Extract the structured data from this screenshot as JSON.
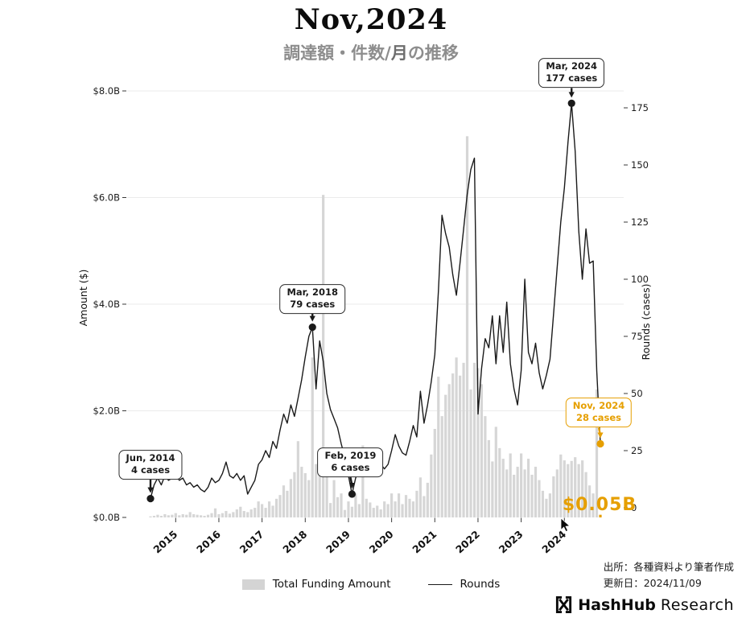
{
  "header": {
    "title": "Nov,2024",
    "subtitle_prefix": "調達額・件数/",
    "subtitle_bold": "月",
    "subtitle_suffix": "の推移"
  },
  "colors": {
    "bar": "#d6d6d6",
    "line": "#1a1a1a",
    "accent_orange": "#E69F00",
    "grid": "#ebebeb",
    "tick": "#3a3a3a"
  },
  "chart_data": {
    "type": "bar+line",
    "x_start": "2014-06",
    "x_freq": "monthly",
    "title": "Nov,2024",
    "subtitle": "調達額・件数/月の推移",
    "amount_axis": {
      "label": "Amount ($)",
      "ticks": [
        "$0.0B",
        "$2.0B",
        "$4.0B",
        "$6.0B",
        "$8.0B"
      ],
      "ylim": [
        0,
        8
      ]
    },
    "rounds_axis": {
      "label": "Rounds (cases)",
      "ticks": [
        "0",
        "25",
        "50",
        "75",
        "100",
        "125",
        "150",
        "175"
      ],
      "ylim": [
        0,
        190
      ]
    },
    "year_labels": [
      "2015",
      "2016",
      "2017",
      "2018",
      "2019",
      "2020",
      "2021",
      "2022",
      "2023",
      "2024"
    ],
    "year_month_index": [
      7,
      19,
      31,
      43,
      55,
      67,
      79,
      91,
      103,
      115
    ],
    "series": [
      {
        "name": "Total Funding Amount",
        "type": "bar",
        "unit": "$B",
        "values": [
          0.02,
          0.03,
          0.05,
          0.03,
          0.06,
          0.04,
          0.05,
          0.08,
          0.04,
          0.06,
          0.05,
          0.1,
          0.06,
          0.05,
          0.04,
          0.03,
          0.05,
          0.08,
          0.17,
          0.06,
          0.08,
          0.12,
          0.07,
          0.1,
          0.15,
          0.2,
          0.12,
          0.1,
          0.15,
          0.18,
          0.3,
          0.25,
          0.18,
          0.3,
          0.22,
          0.35,
          0.42,
          0.6,
          0.5,
          0.72,
          0.85,
          1.43,
          0.95,
          0.83,
          0.7,
          3.0,
          1.0,
          0.9,
          6.05,
          0.85,
          0.27,
          0.7,
          0.38,
          0.45,
          0.14,
          0.3,
          0.2,
          0.45,
          0.25,
          1.35,
          0.35,
          0.28,
          0.18,
          0.22,
          0.15,
          0.3,
          0.25,
          0.45,
          0.3,
          0.45,
          0.25,
          0.42,
          0.35,
          0.3,
          0.5,
          0.75,
          0.4,
          0.65,
          1.18,
          1.66,
          2.64,
          1.9,
          2.3,
          2.5,
          2.7,
          3.0,
          2.66,
          2.9,
          7.15,
          2.4,
          2.9,
          2.8,
          2.5,
          1.9,
          1.45,
          1.05,
          1.7,
          1.3,
          1.1,
          0.9,
          1.2,
          0.8,
          0.95,
          1.2,
          0.9,
          1.1,
          0.8,
          0.95,
          0.7,
          0.5,
          0.35,
          0.45,
          0.77,
          0.9,
          1.18,
          1.07,
          1.0,
          1.06,
          1.13,
          1.0,
          1.07,
          0.85,
          0.6,
          0.45,
          2.4,
          0.05
        ]
      },
      {
        "name": "Rounds",
        "type": "line",
        "unit": "cases",
        "values": [
          4,
          10,
          13,
          10,
          14,
          12,
          13,
          15,
          12,
          13,
          10,
          11,
          9,
          10,
          8,
          7,
          9,
          13,
          11,
          12,
          15,
          20,
          14,
          13,
          15,
          12,
          14,
          6,
          9,
          12,
          19,
          21,
          25,
          22,
          29,
          26,
          34,
          41,
          37,
          45,
          40,
          48,
          56,
          66,
          75,
          79,
          52,
          73,
          64,
          50,
          43,
          39,
          35,
          28,
          22,
          14,
          6,
          13,
          17,
          14,
          16,
          18,
          21,
          23,
          19,
          17,
          19,
          25,
          32,
          27,
          24,
          23,
          29,
          36,
          31,
          51,
          37,
          45,
          55,
          67,
          95,
          128,
          120,
          114,
          102,
          93,
          107,
          122,
          137,
          148,
          153,
          41,
          61,
          74,
          70,
          84,
          63,
          84,
          68,
          90,
          63,
          52,
          45,
          60,
          100,
          68,
          63,
          72,
          59,
          52,
          58,
          65,
          85,
          105,
          125,
          140,
          160,
          177,
          156,
          121,
          100,
          122,
          107,
          108,
          60,
          28
        ]
      }
    ],
    "annotations": [
      {
        "line1": "Jun, 2014",
        "line2": "4 cases",
        "month": 0,
        "value": 4,
        "color": "#1a1a1a",
        "arrow_len": 24,
        "dx": 0
      },
      {
        "line1": "Mar, 2018",
        "line2": "79 cases",
        "month": 45,
        "value": 79,
        "color": "#1a1a1a",
        "arrow_len": 17,
        "dx": 0
      },
      {
        "line1": "Feb, 2019",
        "line2": "6 cases",
        "month": 56,
        "value": 6,
        "color": "#1a1a1a",
        "arrow_len": 21,
        "dx": -2
      },
      {
        "line1": "Mar, 2024",
        "line2": "177 cases",
        "month": 117,
        "value": 177,
        "color": "#1a1a1a",
        "arrow_len": 19,
        "dx": 0
      },
      {
        "line1": "Nov, 2024",
        "line2": "28 cases",
        "month": 125,
        "value": 28,
        "color": "#E69F00",
        "arrow_len": 20,
        "dx": -2
      }
    ],
    "highlight_last_bar": true,
    "last_value_label": "$0.05B"
  },
  "legend": {
    "funding_label": "Total Funding Amount",
    "rounds_label": "Rounds"
  },
  "footer": {
    "source": "出所：各種資料より筆者作成",
    "updated": "更新日：2024/11/09",
    "logo_bold": "HashHub",
    "logo_regular": "Research"
  }
}
